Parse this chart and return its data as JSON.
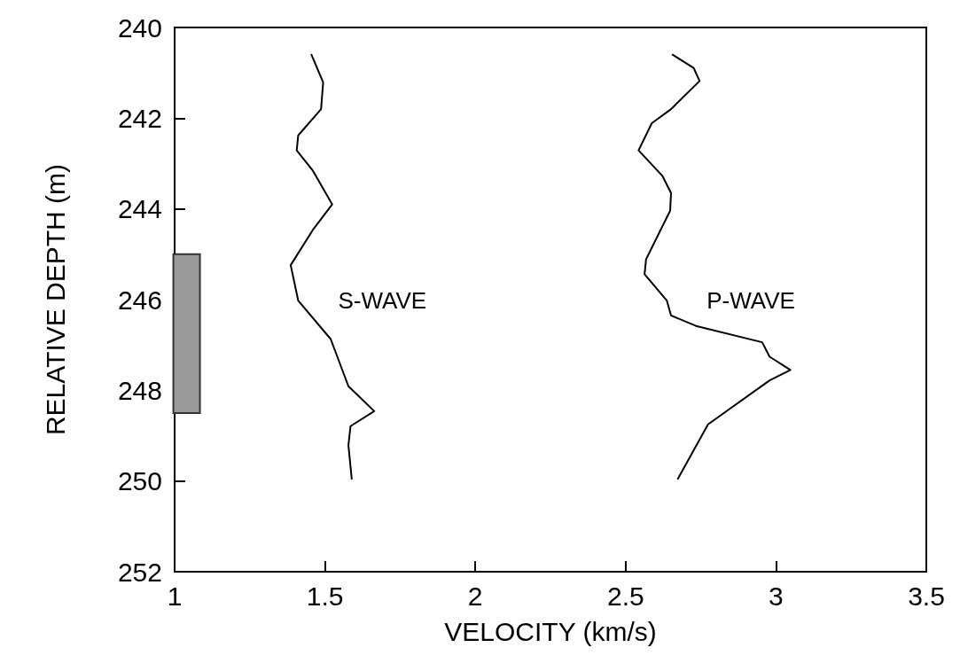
{
  "chart_data": {
    "type": "line",
    "xlabel": "VELOCITY (km/s)",
    "ylabel": "RELATIVE DEPTH (m)",
    "xlim": [
      1,
      3.5
    ],
    "xticks": [
      1,
      1.5,
      2,
      2.5,
      3,
      3.5
    ],
    "ylim": [
      252,
      240
    ],
    "yticks": [
      240,
      242,
      244,
      246,
      248,
      250,
      252
    ],
    "grid": false,
    "legend": false,
    "marker": "none",
    "line_style": "solid",
    "series": [
      {
        "type": "bar",
        "color": "#9a9a9a",
        "x": [
          1.04
        ],
        "base": [
          245
        ],
        "values": [
          3.5
        ]
      },
      {
        "name": "S-WAVE",
        "color": "#000000",
        "x": [
          1.455,
          1.494,
          1.487,
          1.411,
          1.406,
          1.46,
          1.524,
          1.46,
          1.386,
          1.411,
          1.519,
          1.578,
          1.664,
          1.585,
          1.578,
          1.589
        ],
        "values": [
          240.6,
          241.21,
          241.8,
          242.38,
          242.71,
          243.16,
          243.9,
          244.46,
          245.24,
          246.02,
          246.87,
          247.91,
          248.46,
          248.79,
          249.21,
          249.95
        ]
      },
      {
        "name": "P-WAVE",
        "color": "#000000",
        "x": [
          2.656,
          2.726,
          2.746,
          2.651,
          2.587,
          2.543,
          2.622,
          2.651,
          2.648,
          2.568,
          2.563,
          2.637,
          2.651,
          2.734,
          2.954,
          2.979,
          3.048,
          2.979,
          2.774,
          2.674
        ],
        "values": [
          240.6,
          240.89,
          241.18,
          241.8,
          242.11,
          242.71,
          243.27,
          243.65,
          244.04,
          245.11,
          245.44,
          246.02,
          246.35,
          246.58,
          246.94,
          247.26,
          247.55,
          247.78,
          248.75,
          249.95
        ]
      }
    ]
  }
}
